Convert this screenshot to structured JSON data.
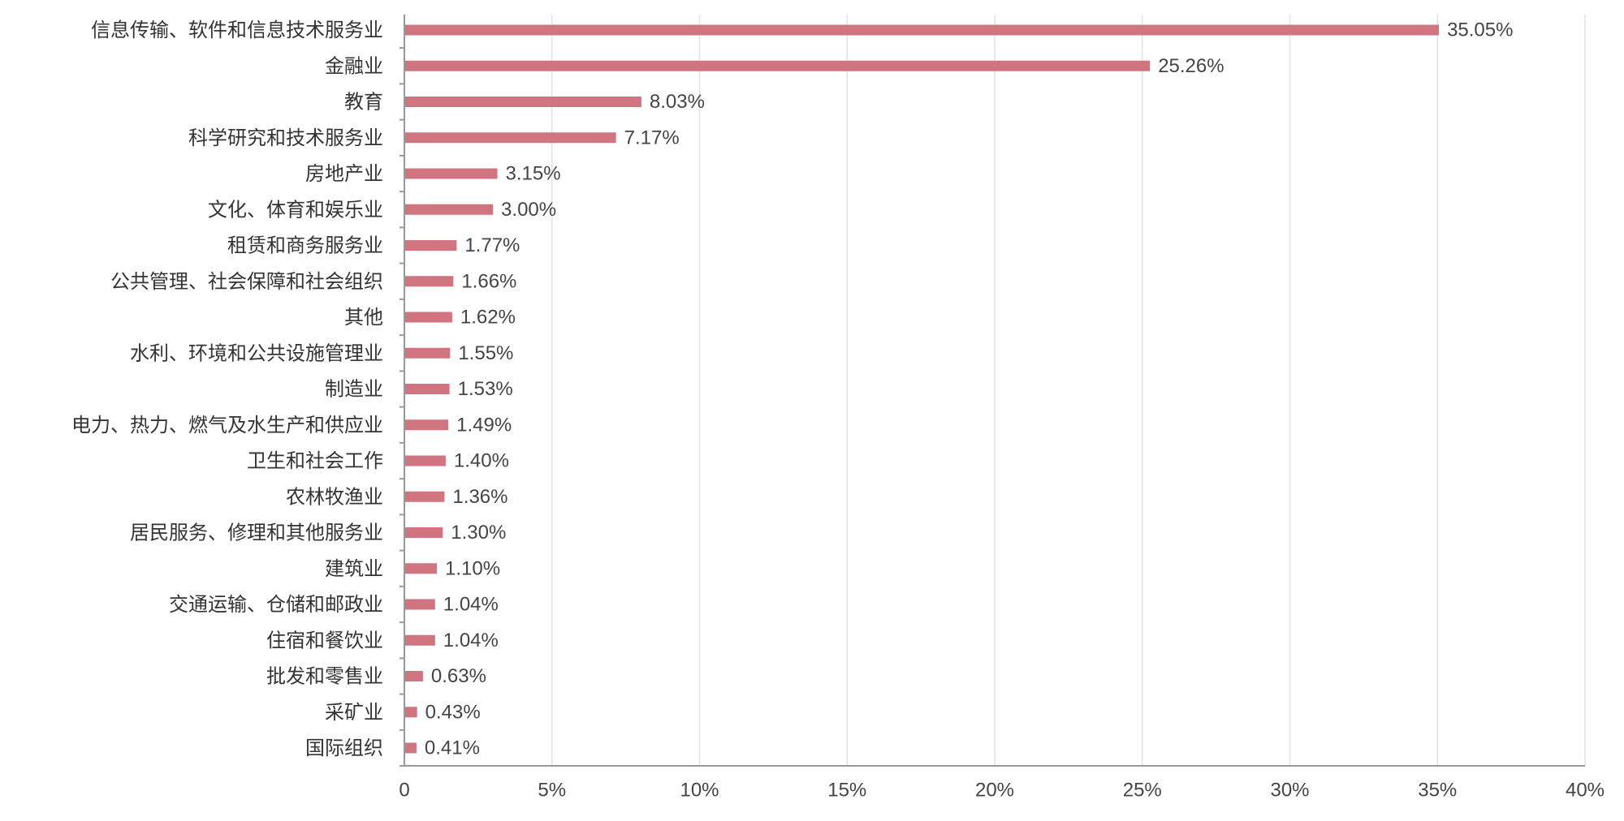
{
  "chart_data": {
    "type": "bar",
    "orientation": "horizontal",
    "categories": [
      "信息传输、软件和信息技术服务业",
      "金融业",
      "教育",
      "科学研究和技术服务业",
      "房地产业",
      "文化、体育和娱乐业",
      "租赁和商务服务业",
      "公共管理、社会保障和社会组织",
      "其他",
      "水利、环境和公共设施管理业",
      "制造业",
      "电力、热力、燃气及水生产和供应业",
      "卫生和社会工作",
      "农林牧渔业",
      "居民服务、修理和其他服务业",
      "建筑业",
      "交通运输、仓储和邮政业",
      "住宿和餐饮业",
      "批发和零售业",
      "采矿业",
      "国际组织"
    ],
    "values": [
      35.05,
      25.26,
      8.03,
      7.17,
      3.15,
      3.0,
      1.77,
      1.66,
      1.62,
      1.55,
      1.53,
      1.49,
      1.4,
      1.36,
      1.3,
      1.1,
      1.04,
      1.04,
      0.63,
      0.43,
      0.41
    ],
    "value_labels": [
      "35.05%",
      "25.26%",
      "8.03%",
      "7.17%",
      "3.15%",
      "3.00%",
      "1.77%",
      "1.66%",
      "1.62%",
      "1.55%",
      "1.53%",
      "1.49%",
      "1.40%",
      "1.36%",
      "1.30%",
      "1.10%",
      "1.04%",
      "1.04%",
      "0.63%",
      "0.43%",
      "0.41%"
    ],
    "xlim": [
      0,
      40
    ],
    "xticks": [
      0,
      5,
      10,
      15,
      20,
      25,
      30,
      35,
      40
    ],
    "xtick_labels": [
      "0",
      "5%",
      "10%",
      "15%",
      "20%",
      "25%",
      "30%",
      "35%",
      "40%"
    ],
    "grid": "vertical",
    "title": "",
    "xlabel": "",
    "ylabel": "",
    "colors": {
      "bar": "#d07580",
      "grid": "#e3e3e3",
      "axis": "#999999",
      "text": "#333333"
    }
  }
}
